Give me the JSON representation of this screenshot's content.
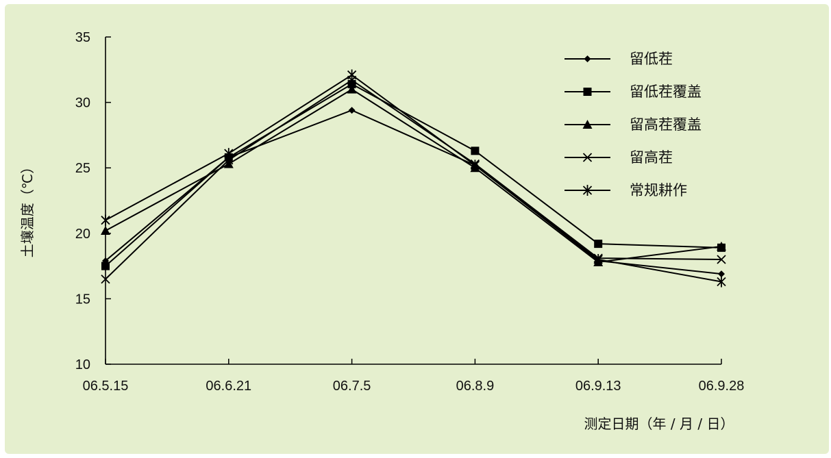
{
  "colors": {
    "panel_background": "#e5efce",
    "line": "#000000"
  },
  "chart_data": {
    "type": "line",
    "title": "",
    "xlabel": "测定日期（年 / 月 / 日）",
    "ylabel": "土壤温度（℃）",
    "categories": [
      "06.5.15",
      "06.6.21",
      "06.7.5",
      "06.8.9",
      "06.9.13",
      "06.9.28"
    ],
    "ylim": [
      10,
      35
    ],
    "yticks": [
      "10",
      "15",
      "20",
      "25",
      "30",
      "35"
    ],
    "grid": false,
    "legend_position": "top-right",
    "series": [
      {
        "name": "留低茬",
        "marker": "diamond",
        "values": [
          17.9,
          25.8,
          29.4,
          25.2,
          17.9,
          16.9
        ]
      },
      {
        "name": "留低茬覆盖",
        "marker": "square",
        "values": [
          17.5,
          25.8,
          31.4,
          26.3,
          19.2,
          18.9
        ]
      },
      {
        "name": "留高茬覆盖",
        "marker": "triangle",
        "values": [
          20.2,
          25.3,
          31.0,
          25.0,
          17.8,
          19.0
        ]
      },
      {
        "name": "留高茬",
        "marker": "x",
        "values": [
          16.5,
          25.6,
          31.7,
          25.3,
          18.1,
          18.0
        ]
      },
      {
        "name": "常规耕作",
        "marker": "asterisk",
        "values": [
          21.0,
          26.1,
          32.1,
          25.2,
          18.0,
          16.3
        ]
      }
    ]
  }
}
